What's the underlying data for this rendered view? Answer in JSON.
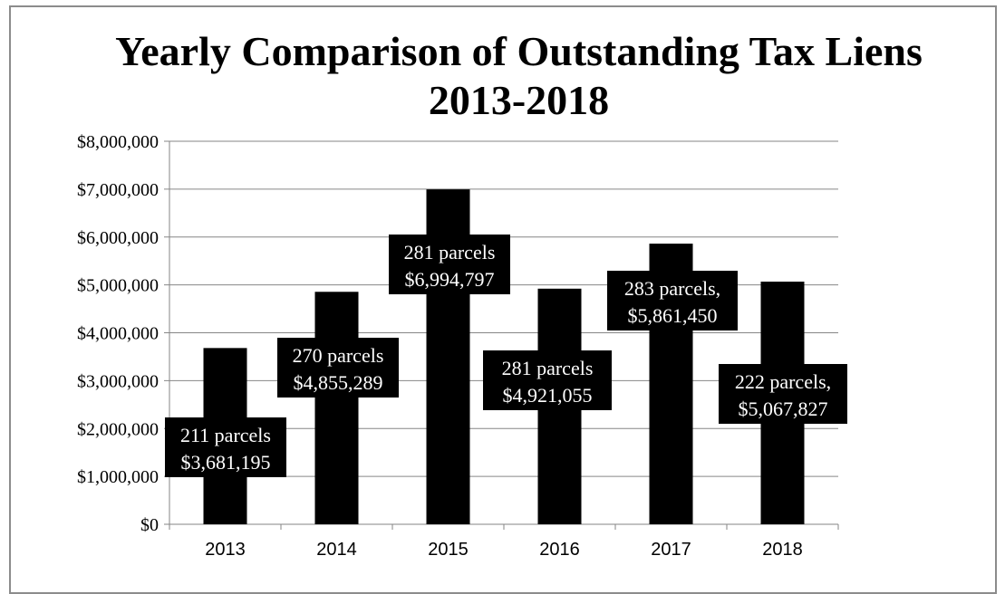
{
  "chart_data": {
    "type": "bar",
    "title": "Yearly Comparison of Outstanding Tax Liens 2013-2018",
    "categories": [
      "2013",
      "2014",
      "2015",
      "2016",
      "2017",
      "2018"
    ],
    "values": [
      3681195,
      4855289,
      6994797,
      4921055,
      5861450,
      5067827
    ],
    "ylim": [
      0,
      8000000
    ],
    "yticks": [
      0,
      1000000,
      2000000,
      3000000,
      4000000,
      5000000,
      6000000,
      7000000,
      8000000
    ],
    "ytick_labels": [
      "$0",
      "$1,000,000",
      "$2,000,000",
      "$3,000,000",
      "$4,000,000",
      "$5,000,000",
      "$6,000,000",
      "$7,000,000",
      "$8,000,000"
    ],
    "data_labels": [
      [
        "211 parcels",
        "$3,681,195"
      ],
      [
        "270 parcels",
        "$4,855,289"
      ],
      [
        "281 parcels",
        "$6,994,797"
      ],
      [
        "281 parcels",
        "$4,921,055"
      ],
      [
        "283 parcels,",
        "$5,861,450"
      ],
      [
        "222 parcels,",
        "$5,067,827"
      ]
    ],
    "grid": true,
    "legend": "none",
    "bar_color": "#000000",
    "label_box_color": "#000000",
    "label_text_color": "#ffffff",
    "gridline_color": "#868686"
  }
}
